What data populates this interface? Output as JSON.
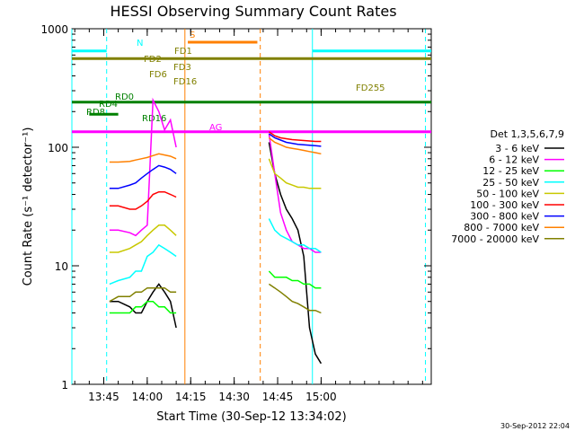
{
  "chart_data": {
    "type": "line",
    "title": "HESSI Observing Summary Count Rates",
    "xlabel": "Start Time (30-Sep-12 13:34:02)",
    "ylabel": "Count Rate (s⁻¹ detector⁻¹)",
    "y_scale": "log",
    "ylim": [
      1,
      1000
    ],
    "xlim": [
      "13:34",
      "15:38"
    ],
    "x_tick_labels": [
      "13:45",
      "14:00",
      "14:15",
      "14:30",
      "14:45",
      "15:00"
    ],
    "y_tick_labels": [
      "1",
      "10",
      "100",
      "1000"
    ],
    "grid": false,
    "legend_position": "right",
    "legend_title": "Det 1,3,5,6,7,9",
    "footer_text": "30-Sep-2012 22:04",
    "series": [
      {
        "name": "3 - 6 keV",
        "color": "#000000",
        "segments": [
          {
            "x": [
              "13:47",
              "13:50",
              "13:54",
              "13:56",
              "13:58",
              "14:00",
              "14:02",
              "14:04",
              "14:06",
              "14:08",
              "14:10"
            ],
            "y": [
              5,
              5,
              4.5,
              4,
              4,
              5,
              6,
              7,
              6,
              5,
              3
            ]
          },
          {
            "x": [
              "14:42",
              "14:44",
              "14:46",
              "14:48",
              "14:50",
              "14:52",
              "14:54",
              "14:56",
              "14:58",
              "15:00"
            ],
            "y": [
              110,
              60,
              40,
              30,
              25,
              20,
              12,
              3,
              1.8,
              1.5
            ]
          }
        ]
      },
      {
        "name": "6 - 12 keV",
        "color": "#ff00ff",
        "segments": [
          {
            "x": [
              "13:47",
              "13:50",
              "13:54",
              "13:56",
              "13:58",
              "14:00",
              "14:02",
              "14:04",
              "14:06",
              "14:08",
              "14:10"
            ],
            "y": [
              20,
              20,
              19,
              18,
              20,
              22,
              250,
              200,
              140,
              170,
              100
            ]
          },
          {
            "x": [
              "14:42",
              "14:44",
              "14:46",
              "14:48",
              "14:50",
              "14:52",
              "14:54",
              "14:56",
              "14:58",
              "15:00"
            ],
            "y": [
              130,
              60,
              28,
              20,
              16,
              15,
              14,
              14,
              13,
              13
            ]
          }
        ]
      },
      {
        "name": "12 - 25 keV",
        "color": "#00ff00",
        "segments": [
          {
            "x": [
              "13:47",
              "13:50",
              "13:54",
              "13:56",
              "13:58",
              "14:00",
              "14:02",
              "14:04",
              "14:06",
              "14:08",
              "14:10"
            ],
            "y": [
              4,
              4,
              4,
              4.5,
              4.5,
              5,
              5,
              4.5,
              4.5,
              4,
              4
            ]
          },
          {
            "x": [
              "14:42",
              "14:44",
              "14:46",
              "14:48",
              "14:50",
              "14:52",
              "14:54",
              "14:56",
              "14:58",
              "15:00"
            ],
            "y": [
              9,
              8,
              8,
              8,
              7.5,
              7.5,
              7,
              7,
              6.5,
              6.5
            ]
          }
        ]
      },
      {
        "name": "25 - 50 keV",
        "color": "#00ffff",
        "segments": [
          {
            "x": [
              "13:47",
              "13:50",
              "13:54",
              "13:56",
              "13:58",
              "14:00",
              "14:02",
              "14:04",
              "14:06",
              "14:08",
              "14:10"
            ],
            "y": [
              7,
              7.5,
              8,
              9,
              9,
              12,
              13,
              15,
              14,
              13,
              12
            ]
          },
          {
            "x": [
              "14:42",
              "14:44",
              "14:46",
              "14:48",
              "14:50",
              "14:52",
              "14:54",
              "14:56",
              "14:58",
              "15:00"
            ],
            "y": [
              25,
              20,
              18,
              17,
              16,
              15,
              15,
              14,
              14,
              13
            ]
          }
        ]
      },
      {
        "name": "50 - 100 keV",
        "color": "#c8c800",
        "segments": [
          {
            "x": [
              "13:47",
              "13:50",
              "13:54",
              "13:56",
              "13:58",
              "14:00",
              "14:02",
              "14:04",
              "14:06",
              "14:08",
              "14:10"
            ],
            "y": [
              13,
              13,
              14,
              15,
              16,
              18,
              20,
              22,
              22,
              20,
              18
            ]
          },
          {
            "x": [
              "14:42",
              "14:44",
              "14:46",
              "14:48",
              "14:50",
              "14:52",
              "14:54",
              "14:56",
              "14:58",
              "15:00"
            ],
            "y": [
              80,
              60,
              55,
              50,
              48,
              46,
              46,
              45,
              45,
              45
            ]
          }
        ]
      },
      {
        "name": "100 - 300 keV",
        "color": "#ff0000",
        "segments": [
          {
            "x": [
              "13:47",
              "13:50",
              "13:54",
              "13:56",
              "13:58",
              "14:00",
              "14:02",
              "14:04",
              "14:06",
              "14:08",
              "14:10"
            ],
            "y": [
              32,
              32,
              30,
              30,
              32,
              35,
              40,
              42,
              42,
              40,
              38
            ]
          },
          {
            "x": [
              "14:42",
              "14:44",
              "14:46",
              "14:48",
              "14:50",
              "14:52",
              "14:54",
              "14:56",
              "14:58",
              "15:00"
            ],
            "y": [
              135,
              125,
              120,
              118,
              116,
              115,
              114,
              113,
              112,
              112
            ]
          }
        ]
      },
      {
        "name": "300 - 800 keV",
        "color": "#0000ff",
        "segments": [
          {
            "x": [
              "13:47",
              "13:50",
              "13:54",
              "13:56",
              "13:58",
              "14:00",
              "14:02",
              "14:04",
              "14:06",
              "14:08",
              "14:10"
            ],
            "y": [
              45,
              45,
              48,
              50,
              55,
              60,
              65,
              70,
              68,
              65,
              60
            ]
          },
          {
            "x": [
              "14:42",
              "14:44",
              "14:46",
              "14:48",
              "14:50",
              "14:52",
              "14:54",
              "14:56",
              "14:58",
              "15:00"
            ],
            "y": [
              130,
              120,
              115,
              110,
              108,
              106,
              105,
              104,
              103,
              102
            ]
          }
        ]
      },
      {
        "name": "800 - 7000 keV",
        "color": "#ff8000",
        "segments": [
          {
            "x": [
              "13:47",
              "13:50",
              "13:54",
              "13:56",
              "13:58",
              "14:00",
              "14:02",
              "14:04",
              "14:06",
              "14:08",
              "14:10"
            ],
            "y": [
              75,
              75,
              76,
              78,
              80,
              82,
              85,
              88,
              86,
              84,
              80
            ]
          },
          {
            "x": [
              "14:42",
              "14:44",
              "14:46",
              "14:48",
              "14:50",
              "14:52",
              "14:54",
              "14:56",
              "14:58",
              "15:00"
            ],
            "y": [
              120,
              110,
              105,
              100,
              98,
              96,
              94,
              92,
              90,
              88
            ]
          }
        ]
      },
      {
        "name": "7000 - 20000 keV",
        "color": "#808000",
        "segments": [
          {
            "x": [
              "13:47",
              "13:50",
              "13:54",
              "13:56",
              "13:58",
              "14:00",
              "14:02",
              "14:04",
              "14:06",
              "14:08",
              "14:10"
            ],
            "y": [
              5,
              5.5,
              5.5,
              6,
              6,
              6.5,
              6.5,
              6.5,
              6.5,
              6,
              6
            ]
          },
          {
            "x": [
              "14:42",
              "14:44",
              "14:46",
              "14:48",
              "14:50",
              "14:52",
              "14:54",
              "14:56",
              "14:58",
              "15:00"
            ],
            "y": [
              7,
              6.5,
              6,
              5.5,
              5,
              4.8,
              4.5,
              4.2,
              4.2,
              4
            ]
          }
        ]
      }
    ],
    "flags": [
      {
        "label": "N",
        "color": "#00ffff",
        "y": 650,
        "segments": [
          [
            "13:34",
            "13:46"
          ],
          [
            "14:57",
            "15:38"
          ]
        ]
      },
      {
        "label": "S",
        "color": "#ff8000",
        "y": 770,
        "segments": [
          [
            "14:14",
            "14:38"
          ]
        ]
      },
      {
        "label": "FD255",
        "color": "#808000",
        "y": 560,
        "segments": [
          [
            "13:34",
            "15:38"
          ]
        ]
      },
      {
        "label": "FD1",
        "color": "#808000",
        "y": 500,
        "segments": []
      },
      {
        "label": "FD2",
        "color": "#808000",
        "y": 500,
        "segments": []
      },
      {
        "label": "FD3",
        "color": "#808000",
        "y": 500,
        "segments": []
      },
      {
        "label": "FD6",
        "color": "#808000",
        "y": 500,
        "segments": []
      },
      {
        "label": "FD16",
        "color": "#808000",
        "y": 500,
        "segments": []
      },
      {
        "label": "RD0",
        "color": "#008000",
        "y": 240,
        "segments": [
          [
            "13:34",
            "15:38"
          ]
        ]
      },
      {
        "label": "RD4",
        "color": "#008000",
        "y": 215,
        "segments": []
      },
      {
        "label": "RD8",
        "color": "#008000",
        "y": 190,
        "segments": [
          [
            "13:40",
            "13:50"
          ]
        ]
      },
      {
        "label": "RD16",
        "color": "#008000",
        "y": 175,
        "segments": []
      },
      {
        "label": "AG",
        "color": "#ff00ff",
        "y": 135,
        "segments": [
          [
            "13:34",
            "15:38"
          ]
        ]
      }
    ],
    "vertical_lines": [
      {
        "x": "13:34",
        "color": "#00ffff",
        "style": "solid"
      },
      {
        "x": "13:46",
        "color": "#00ffff",
        "style": "dashed"
      },
      {
        "x": "14:13",
        "color": "#ff8000",
        "style": "solid"
      },
      {
        "x": "14:39",
        "color": "#ff8000",
        "style": "dashed"
      },
      {
        "x": "14:57",
        "color": "#00ffff",
        "style": "solid"
      },
      {
        "x": "15:36",
        "color": "#00ffff",
        "style": "dashed"
      }
    ]
  }
}
